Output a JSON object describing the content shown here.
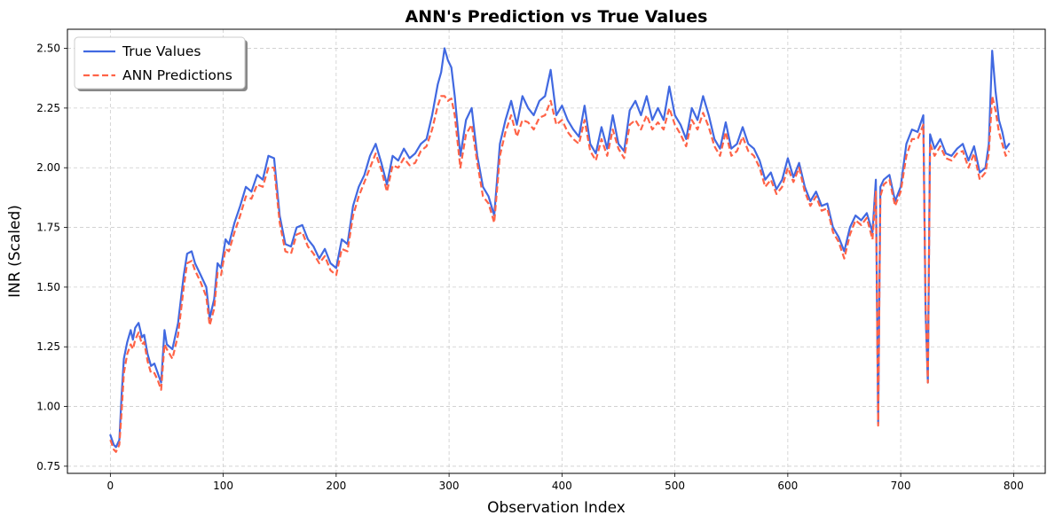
{
  "chart_data": {
    "type": "line",
    "title": "ANN's Prediction vs True Values",
    "xlabel": "Observation Index",
    "ylabel": "INR (Scaled)",
    "xlim": [
      -38,
      828
    ],
    "ylim": [
      0.72,
      2.58
    ],
    "xticks": [
      0,
      100,
      200,
      300,
      400,
      500,
      600,
      700,
      800
    ],
    "yticks": [
      0.75,
      1.0,
      1.25,
      1.5,
      1.75,
      2.0,
      2.25,
      2.5
    ],
    "ytick_labels": [
      "0.75",
      "1.00",
      "1.25",
      "1.50",
      "1.75",
      "2.00",
      "2.25",
      "2.50"
    ],
    "xtick_labels": [
      "0",
      "100",
      "200",
      "300",
      "400",
      "500",
      "600",
      "700",
      "800"
    ],
    "grid": true,
    "legend_position": "top-left",
    "series": [
      {
        "name": "True Values",
        "color": "#4169e1",
        "style": "solid",
        "x": [
          0,
          3,
          5,
          8,
          10,
          12,
          15,
          18,
          20,
          22,
          25,
          28,
          30,
          33,
          36,
          39,
          42,
          45,
          48,
          50,
          55,
          60,
          65,
          68,
          72,
          75,
          80,
          85,
          88,
          92,
          95,
          98,
          102,
          105,
          110,
          115,
          120,
          125,
          130,
          135,
          140,
          145,
          150,
          155,
          160,
          165,
          170,
          175,
          180,
          185,
          190,
          195,
          200,
          205,
          210,
          215,
          220,
          225,
          230,
          235,
          240,
          245,
          250,
          255,
          260,
          265,
          270,
          275,
          280,
          285,
          290,
          293,
          296,
          299,
          302,
          305,
          310,
          315,
          320,
          325,
          330,
          335,
          340,
          345,
          350,
          355,
          360,
          365,
          370,
          375,
          380,
          385,
          390,
          395,
          400,
          405,
          410,
          415,
          420,
          425,
          430,
          435,
          440,
          445,
          450,
          455,
          460,
          465,
          470,
          475,
          480,
          485,
          490,
          495,
          500,
          505,
          510,
          515,
          520,
          525,
          530,
          535,
          540,
          545,
          550,
          555,
          560,
          565,
          570,
          575,
          580,
          585,
          590,
          595,
          600,
          605,
          610,
          615,
          620,
          625,
          630,
          635,
          640,
          645,
          650,
          655,
          660,
          665,
          670,
          675,
          678,
          680,
          682,
          685,
          690,
          695,
          700,
          705,
          710,
          715,
          720,
          722,
          724,
          726,
          730,
          735,
          740,
          745,
          750,
          755,
          760,
          765,
          770,
          775,
          778,
          781,
          784,
          787,
          790,
          793,
          796
        ],
        "values": [
          0.88,
          0.84,
          0.83,
          0.86,
          1.05,
          1.2,
          1.27,
          1.32,
          1.28,
          1.33,
          1.35,
          1.29,
          1.3,
          1.22,
          1.17,
          1.18,
          1.14,
          1.1,
          1.32,
          1.26,
          1.24,
          1.35,
          1.55,
          1.64,
          1.65,
          1.6,
          1.55,
          1.5,
          1.37,
          1.45,
          1.6,
          1.58,
          1.7,
          1.68,
          1.77,
          1.84,
          1.92,
          1.9,
          1.97,
          1.95,
          2.05,
          2.04,
          1.8,
          1.68,
          1.67,
          1.75,
          1.76,
          1.7,
          1.67,
          1.62,
          1.66,
          1.6,
          1.58,
          1.7,
          1.68,
          1.84,
          1.92,
          1.97,
          2.05,
          2.1,
          2.02,
          1.93,
          2.05,
          2.03,
          2.08,
          2.04,
          2.06,
          2.1,
          2.12,
          2.22,
          2.35,
          2.4,
          2.5,
          2.45,
          2.42,
          2.3,
          2.05,
          2.2,
          2.25,
          2.05,
          1.92,
          1.88,
          1.8,
          2.1,
          2.2,
          2.28,
          2.18,
          2.3,
          2.25,
          2.22,
          2.28,
          2.3,
          2.41,
          2.22,
          2.26,
          2.2,
          2.16,
          2.13,
          2.26,
          2.1,
          2.06,
          2.17,
          2.08,
          2.22,
          2.1,
          2.07,
          2.24,
          2.28,
          2.22,
          2.3,
          2.2,
          2.25,
          2.2,
          2.34,
          2.22,
          2.18,
          2.12,
          2.25,
          2.2,
          2.3,
          2.22,
          2.12,
          2.08,
          2.19,
          2.08,
          2.1,
          2.17,
          2.1,
          2.08,
          2.03,
          1.95,
          1.98,
          1.91,
          1.95,
          2.04,
          1.96,
          2.02,
          1.92,
          1.86,
          1.9,
          1.84,
          1.85,
          1.75,
          1.71,
          1.65,
          1.75,
          1.8,
          1.78,
          1.81,
          1.73,
          1.95,
          0.93,
          1.92,
          1.95,
          1.97,
          1.86,
          1.92,
          2.1,
          2.16,
          2.15,
          2.22,
          1.4,
          1.1,
          2.14,
          2.08,
          2.12,
          2.06,
          2.05,
          2.08,
          2.1,
          2.03,
          2.09,
          1.98,
          2.0,
          2.1,
          2.49,
          2.32,
          2.2,
          2.15,
          2.08,
          2.1
        ]
      },
      {
        "name": "ANN Predictions",
        "color": "#ff6347",
        "style": "dashed",
        "x": [
          0,
          3,
          5,
          8,
          10,
          12,
          15,
          18,
          20,
          22,
          25,
          28,
          30,
          33,
          36,
          39,
          42,
          45,
          48,
          50,
          55,
          60,
          65,
          68,
          72,
          75,
          80,
          85,
          88,
          92,
          95,
          98,
          102,
          105,
          110,
          115,
          120,
          125,
          130,
          135,
          140,
          145,
          150,
          155,
          160,
          165,
          170,
          175,
          180,
          185,
          190,
          195,
          200,
          205,
          210,
          215,
          220,
          225,
          230,
          235,
          240,
          245,
          250,
          255,
          260,
          265,
          270,
          275,
          280,
          285,
          290,
          293,
          296,
          299,
          302,
          305,
          310,
          315,
          320,
          325,
          330,
          335,
          340,
          345,
          350,
          355,
          360,
          365,
          370,
          375,
          380,
          385,
          390,
          395,
          400,
          405,
          410,
          415,
          420,
          425,
          430,
          435,
          440,
          445,
          450,
          455,
          460,
          465,
          470,
          475,
          480,
          485,
          490,
          495,
          500,
          505,
          510,
          515,
          520,
          525,
          530,
          535,
          540,
          545,
          550,
          555,
          560,
          565,
          570,
          575,
          580,
          585,
          590,
          595,
          600,
          605,
          610,
          615,
          620,
          625,
          630,
          635,
          640,
          645,
          650,
          655,
          660,
          665,
          670,
          675,
          678,
          680,
          682,
          685,
          690,
          695,
          700,
          705,
          710,
          715,
          720,
          722,
          724,
          726,
          730,
          735,
          740,
          745,
          750,
          755,
          760,
          765,
          770,
          775,
          778,
          781,
          784,
          787,
          790,
          793,
          796
        ],
        "values": [
          0.86,
          0.82,
          0.81,
          0.84,
          0.98,
          1.14,
          1.22,
          1.26,
          1.24,
          1.28,
          1.31,
          1.26,
          1.27,
          1.19,
          1.14,
          1.14,
          1.11,
          1.07,
          1.26,
          1.24,
          1.2,
          1.3,
          1.5,
          1.6,
          1.61,
          1.57,
          1.52,
          1.46,
          1.34,
          1.41,
          1.56,
          1.55,
          1.66,
          1.65,
          1.73,
          1.8,
          1.88,
          1.87,
          1.93,
          1.92,
          2.0,
          2.0,
          1.77,
          1.65,
          1.64,
          1.72,
          1.73,
          1.67,
          1.64,
          1.6,
          1.63,
          1.57,
          1.55,
          1.66,
          1.65,
          1.8,
          1.88,
          1.94,
          2.0,
          2.06,
          1.99,
          1.9,
          2.01,
          2.0,
          2.04,
          2.01,
          2.02,
          2.07,
          2.09,
          2.16,
          2.26,
          2.3,
          2.3,
          2.28,
          2.29,
          2.22,
          2.0,
          2.14,
          2.18,
          2.02,
          1.88,
          1.85,
          1.77,
          2.05,
          2.15,
          2.22,
          2.13,
          2.2,
          2.19,
          2.16,
          2.21,
          2.22,
          2.28,
          2.18,
          2.2,
          2.15,
          2.12,
          2.1,
          2.2,
          2.07,
          2.03,
          2.12,
          2.05,
          2.16,
          2.08,
          2.04,
          2.18,
          2.2,
          2.16,
          2.22,
          2.16,
          2.19,
          2.16,
          2.25,
          2.18,
          2.14,
          2.09,
          2.2,
          2.16,
          2.23,
          2.17,
          2.09,
          2.05,
          2.15,
          2.05,
          2.07,
          2.13,
          2.07,
          2.05,
          2.0,
          1.92,
          1.95,
          1.89,
          1.92,
          2.0,
          1.94,
          2.0,
          1.9,
          1.84,
          1.88,
          1.82,
          1.83,
          1.73,
          1.69,
          1.62,
          1.72,
          1.78,
          1.76,
          1.79,
          1.7,
          1.9,
          0.92,
          1.88,
          1.93,
          1.95,
          1.84,
          1.9,
          2.05,
          2.12,
          2.12,
          2.18,
          1.44,
          1.1,
          2.1,
          2.05,
          2.09,
          2.04,
          2.03,
          2.06,
          2.07,
          2.0,
          2.06,
          1.95,
          1.98,
          2.06,
          2.3,
          2.24,
          2.15,
          2.1,
          2.05,
          2.07
        ]
      }
    ]
  }
}
